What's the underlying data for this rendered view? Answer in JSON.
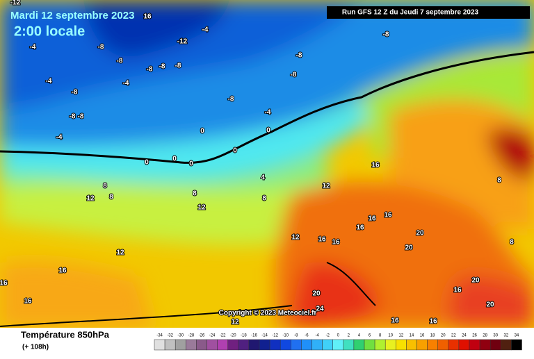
{
  "header": {
    "date": "Mardi 12 septembre 2023",
    "time": "2:00 locale",
    "run": "Run GFS 12 Z du Jeudi 7 septembre 2023"
  },
  "map": {
    "contour_labels": [
      -12,
      16,
      -4,
      -8,
      -12,
      -8,
      -8,
      -8,
      -8,
      -8,
      -8,
      -4,
      -8,
      -4,
      -4,
      -8,
      -8,
      -4,
      -8,
      -8,
      -4,
      0,
      0,
      0,
      0,
      0,
      0,
      16,
      4,
      8,
      8,
      8,
      12,
      12,
      8,
      12,
      16,
      16,
      16,
      20,
      12,
      16,
      16,
      20,
      12,
      16,
      16,
      16,
      20,
      20,
      20,
      16,
      24,
      16,
      16,
      12,
      8,
      8
    ],
    "copyright": "Copyright © 2023 Meteociel.fr"
  },
  "footer": {
    "title": "Température 850hPa",
    "lead": "(+ 108h)",
    "scale": [
      -34,
      -32,
      -30,
      -28,
      -26,
      -24,
      -22,
      -20,
      -18,
      -16,
      -14,
      -12,
      -10,
      -8,
      -6,
      -4,
      -2,
      0,
      2,
      4,
      6,
      8,
      10,
      12,
      14,
      16,
      18,
      20,
      22,
      24,
      26,
      28,
      30,
      32,
      34
    ]
  }
}
